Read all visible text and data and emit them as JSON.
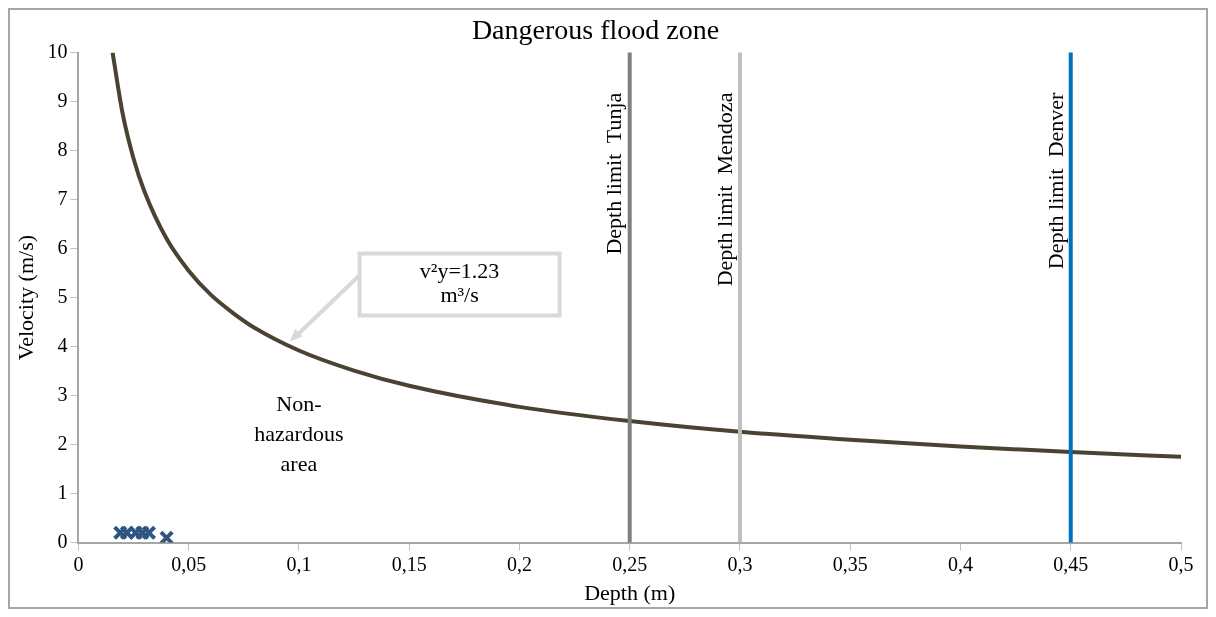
{
  "chart_data": {
    "type": "line",
    "title": "Dangerous flood zone",
    "xlabel": "Depth (m)",
    "ylabel": "Velocity (m/s)",
    "series": [
      {
        "color": "#4b4331",
        "x": [
          0.0155,
          0.02,
          0.025,
          0.03,
          0.04,
          0.05,
          0.06,
          0.07,
          0.08,
          0.1,
          0.125,
          0.15,
          0.2,
          0.25,
          0.3,
          0.35,
          0.4,
          0.45,
          0.5
        ],
        "values": [
          10.0,
          8.77,
          7.84,
          7.16,
          6.2,
          5.55,
          5.06,
          4.69,
          4.38,
          3.92,
          3.51,
          3.2,
          2.77,
          2.48,
          2.26,
          2.1,
          1.96,
          1.85,
          1.75
        ]
      },
      {
        "type": "scatter",
        "color": "#2f5580",
        "marker": "cross",
        "x": [
          0.019,
          0.022,
          0.026,
          0.029,
          0.032,
          0.04
        ],
        "values": [
          0.2,
          0.2,
          0.2,
          0.2,
          0.2,
          0.1
        ]
      }
    ],
    "xlim": [
      0,
      0.5
    ],
    "xticks": [
      0,
      {
        "value": 0.05,
        "label": "0,05"
      },
      {
        "value": 0.1,
        "label": "0,1"
      },
      {
        "value": 0.15,
        "label": "0,15"
      },
      {
        "value": 0.2,
        "label": "0,2"
      },
      {
        "value": 0.25,
        "label": "0,25"
      },
      {
        "value": 0.3,
        "label": "0,3"
      },
      {
        "value": 0.35,
        "label": "0,35"
      },
      {
        "value": 0.4,
        "label": "0,4"
      },
      {
        "value": 0.45,
        "label": "0,45"
      },
      {
        "value": 0.5,
        "label": "0,5"
      }
    ],
    "ylim": [
      0,
      10
    ],
    "yticks": [
      0,
      1,
      2,
      3,
      4,
      5,
      6,
      7,
      8,
      9,
      10
    ],
    "ref_lines": [
      {
        "axis": "x",
        "value": 0.25,
        "label": "Depth limit  Tunja",
        "color": "#7f7f7f"
      },
      {
        "axis": "x",
        "value": 0.3,
        "label": "Depth limit  Mendoza",
        "color": "#bfbfbf"
      },
      {
        "axis": "x",
        "value": 0.45,
        "label": "Depth limit  Denver",
        "color": "#0070c0"
      }
    ],
    "annotations": [
      "Non-hazardous area",
      "v²y=1.23 m³/s"
    ],
    "grid": false,
    "legend": false
  }
}
